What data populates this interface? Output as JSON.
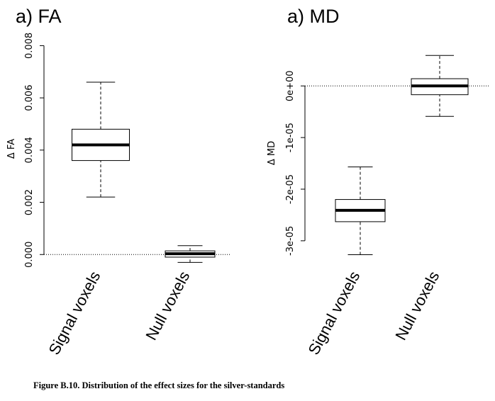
{
  "chart_data": [
    {
      "type": "box",
      "title": "a) FA",
      "ylabel": "Δ FA",
      "categories": [
        "Signal voxels",
        "Null voxels"
      ],
      "boxes": [
        {
          "whisker_low": 0.0022,
          "q1": 0.0036,
          "median": 0.0042,
          "q3": 0.0048,
          "whisker_high": 0.0066
        },
        {
          "whisker_low": -0.0003,
          "q1": -0.0001,
          "median": 3e-05,
          "q3": 0.00014,
          "whisker_high": 0.00034
        }
      ],
      "ylim": [
        -0.0004,
        0.0085
      ],
      "yticks": [
        {
          "value": 0,
          "label": "0.000"
        },
        {
          "value": 0.002,
          "label": "0.002"
        },
        {
          "value": 0.004,
          "label": "0.004"
        },
        {
          "value": 0.006,
          "label": "0.006"
        },
        {
          "value": 0.008,
          "label": "0.008"
        }
      ],
      "reference_line": 0,
      "color": "#000000"
    },
    {
      "type": "box",
      "title": "a) MD",
      "ylabel": "Δ MD",
      "categories": [
        "Signal voxels",
        "Null voxels"
      ],
      "boxes": [
        {
          "whisker_low": -3.27e-05,
          "q1": -2.63e-05,
          "median": -2.41e-05,
          "q3": -2.2e-05,
          "whisker_high": -1.57e-05
        },
        {
          "whisker_low": -5.9e-06,
          "q1": -1.7e-06,
          "median": 0,
          "q3": 1.4e-06,
          "whisker_high": 5.9e-06
        }
      ],
      "ylim": [
        -3.4e-05,
        8e-06
      ],
      "yticks": [
        {
          "value": -3e-05,
          "label": "-3e-05"
        },
        {
          "value": -2e-05,
          "label": "-2e-05"
        },
        {
          "value": -1e-05,
          "label": "-1e-05"
        },
        {
          "value": 0,
          "label": "0e+00"
        }
      ],
      "reference_line": 0,
      "color": "#000000"
    }
  ],
  "caption": "Figure B.10. Distribution of the effect sizes for the silver-standards"
}
